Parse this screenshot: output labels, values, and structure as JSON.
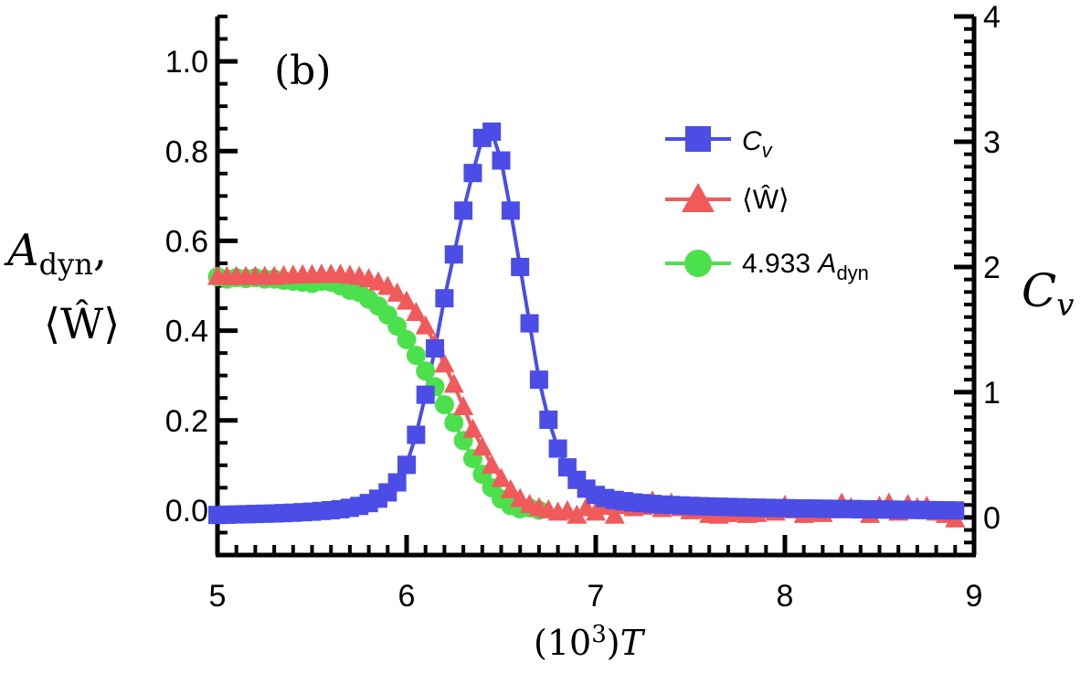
{
  "chart_data": {
    "type": "line",
    "panel_label": "(b)",
    "x_axis": {
      "label_prefix": "(10",
      "label_exp": "3",
      "label_suffix": ")",
      "label_var": "T",
      "range": [
        5,
        9
      ],
      "ticks": [
        5,
        6,
        7,
        8,
        9
      ],
      "tick_labels": [
        "5",
        "6",
        "7",
        "8",
        "9"
      ]
    },
    "y_left": {
      "label_line1_main": "A",
      "label_line1_sub": "dyn",
      "label_line1_suffix": ",",
      "label_line2": "⟨Ŵ⟩",
      "range": [
        -0.1,
        1.1
      ],
      "ticks": [
        0.0,
        0.2,
        0.4,
        0.6,
        0.8,
        1.0
      ],
      "tick_labels": [
        "0.0",
        "0.2",
        "0.4",
        "0.6",
        "0.8",
        "1.0"
      ]
    },
    "y_right": {
      "label_main": "C",
      "label_sub": "v",
      "range": [
        -0.3,
        4.0
      ],
      "ticks": [
        0,
        1,
        2,
        3,
        4
      ],
      "tick_labels": [
        "0",
        "1",
        "2",
        "3",
        "4"
      ]
    },
    "series": [
      {
        "name": "Cv",
        "legend_main": "C",
        "legend_sub": "v",
        "axis": "right",
        "marker": "square",
        "color": "#4b4de6",
        "x": [
          5.0,
          5.05,
          5.1,
          5.15,
          5.2,
          5.25,
          5.3,
          5.35,
          5.4,
          5.45,
          5.5,
          5.55,
          5.6,
          5.65,
          5.7,
          5.75,
          5.8,
          5.85,
          5.9,
          5.95,
          6.0,
          6.05,
          6.1,
          6.15,
          6.2,
          6.25,
          6.3,
          6.35,
          6.4,
          6.45,
          6.5,
          6.55,
          6.6,
          6.65,
          6.7,
          6.75,
          6.8,
          6.85,
          6.9,
          6.95,
          7.0,
          7.05,
          7.1,
          7.15,
          7.2,
          7.25,
          7.3,
          7.35,
          7.4,
          7.45,
          7.5,
          7.55,
          7.6,
          7.65,
          7.7,
          7.75,
          7.8,
          7.85,
          7.9,
          7.95,
          8.0,
          8.05,
          8.1,
          8.15,
          8.2,
          8.25,
          8.3,
          8.35,
          8.4,
          8.45,
          8.5,
          8.55,
          8.6,
          8.65,
          8.7,
          8.75,
          8.8,
          8.85,
          8.9
        ],
        "values": [
          0.02,
          0.022,
          0.024,
          0.026,
          0.028,
          0.03,
          0.032,
          0.035,
          0.038,
          0.042,
          0.046,
          0.052,
          0.058,
          0.066,
          0.077,
          0.092,
          0.115,
          0.15,
          0.2,
          0.28,
          0.42,
          0.66,
          0.98,
          1.35,
          1.75,
          2.1,
          2.45,
          2.75,
          3.03,
          3.08,
          2.85,
          2.45,
          2.0,
          1.55,
          1.1,
          0.78,
          0.55,
          0.4,
          0.3,
          0.23,
          0.18,
          0.155,
          0.14,
          0.13,
          0.12,
          0.114,
          0.108,
          0.103,
          0.099,
          0.096,
          0.093,
          0.09,
          0.088,
          0.086,
          0.084,
          0.082,
          0.08,
          0.078,
          0.077,
          0.075,
          0.074,
          0.073,
          0.072,
          0.071,
          0.07,
          0.069,
          0.068,
          0.067,
          0.066,
          0.065,
          0.064,
          0.063,
          0.062,
          0.061,
          0.06,
          0.059,
          0.058,
          0.057,
          0.056
        ]
      },
      {
        "name": "W",
        "legend_label": "⟨Ŵ⟩",
        "axis": "left",
        "marker": "triangle",
        "color": "#f05a5a",
        "x": [
          5.0,
          5.05,
          5.1,
          5.15,
          5.2,
          5.25,
          5.3,
          5.35,
          5.4,
          5.45,
          5.5,
          5.55,
          5.6,
          5.65,
          5.7,
          5.75,
          5.8,
          5.85,
          5.9,
          5.95,
          6.0,
          6.05,
          6.1,
          6.15,
          6.2,
          6.25,
          6.3,
          6.35,
          6.4,
          6.45,
          6.5,
          6.55,
          6.6,
          6.65,
          6.7,
          6.75,
          6.8,
          6.85,
          6.9,
          6.95,
          7.0,
          7.05,
          7.1,
          7.15,
          7.2,
          7.25,
          7.3,
          7.35,
          7.4,
          7.45,
          7.5,
          7.55,
          7.6,
          7.65,
          7.7,
          7.75,
          7.8,
          7.85,
          7.9,
          7.95,
          8.0,
          8.05,
          8.1,
          8.15,
          8.2,
          8.25,
          8.3,
          8.35,
          8.4,
          8.45,
          8.5,
          8.55,
          8.6,
          8.65,
          8.7,
          8.75,
          8.8,
          8.85,
          8.9
        ],
        "values": [
          0.52,
          0.52,
          0.52,
          0.52,
          0.52,
          0.52,
          0.52,
          0.522,
          0.523,
          0.524,
          0.524,
          0.525,
          0.525,
          0.525,
          0.523,
          0.52,
          0.515,
          0.508,
          0.498,
          0.483,
          0.465,
          0.44,
          0.41,
          0.37,
          0.325,
          0.28,
          0.23,
          0.18,
          0.14,
          0.1,
          0.07,
          0.045,
          0.025,
          0.012,
          0.005,
          0.0,
          -0.005,
          -0.002,
          -0.012,
          0.005,
          -0.005,
          0.008,
          -0.012,
          0.01,
          0.005,
          0.008,
          0.02,
          0.003,
          0.015,
          0.005,
          -0.002,
          0.0,
          -0.01,
          -0.012,
          -0.008,
          -0.005,
          -0.01,
          -0.008,
          0.0,
          -0.005,
          0.01,
          0.0,
          -0.01,
          -0.005,
          -0.008,
          0.0,
          0.015,
          0.005,
          0.0,
          -0.01,
          0.008,
          0.015,
          -0.005,
          0.012,
          0.005,
          0.008,
          -0.005,
          -0.01,
          -0.02
        ]
      },
      {
        "name": "4.933 Adyn",
        "legend_prefix": "4.933 ",
        "legend_main": "A",
        "legend_sub": "dyn",
        "axis": "left",
        "marker": "circle",
        "color": "#4de04d",
        "x": [
          5.0,
          5.05,
          5.1,
          5.15,
          5.2,
          5.25,
          5.3,
          5.35,
          5.4,
          5.45,
          5.5,
          5.55,
          5.6,
          5.65,
          5.7,
          5.75,
          5.8,
          5.85,
          5.9,
          5.95,
          6.0,
          6.05,
          6.1,
          6.15,
          6.2,
          6.25,
          6.3,
          6.35,
          6.4,
          6.45,
          6.5,
          6.55,
          6.6,
          6.65,
          6.7
        ],
        "values": [
          0.52,
          0.515,
          0.518,
          0.516,
          0.518,
          0.515,
          0.515,
          0.512,
          0.51,
          0.508,
          0.505,
          0.51,
          0.508,
          0.5,
          0.49,
          0.485,
          0.47,
          0.455,
          0.435,
          0.41,
          0.38,
          0.345,
          0.31,
          0.275,
          0.235,
          0.195,
          0.155,
          0.115,
          0.08,
          0.05,
          0.025,
          0.01,
          0.003,
          0.005,
          0.0
        ]
      }
    ]
  }
}
